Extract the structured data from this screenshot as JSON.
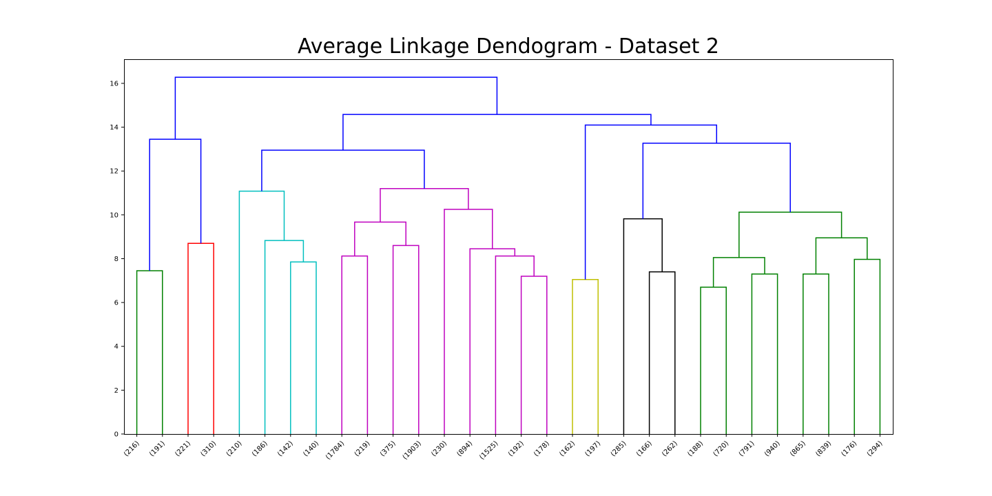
{
  "chart_data": {
    "type": "dendrogram",
    "title": "Average Linkage Dendogram - Dataset 2",
    "xlabel": "",
    "ylabel": "",
    "ylim": [
      0,
      17.1
    ],
    "yticks": [
      0,
      2,
      4,
      6,
      8,
      10,
      12,
      14,
      16
    ],
    "grid": false,
    "leaves": [
      "(216)",
      "(191)",
      "(221)",
      "(310)",
      "(210)",
      "(186)",
      "(142)",
      "(140)",
      "(1784)",
      "(219)",
      "(375)",
      "(1903)",
      "(230)",
      "(894)",
      "(1525)",
      "(192)",
      "(178)",
      "(162)",
      "(197)",
      "(285)",
      "(166)",
      "(262)",
      "(188)",
      "(720)",
      "(791)",
      "(940)",
      "(865)",
      "(839)",
      "(176)",
      "(294)"
    ],
    "colors": {
      "green": "#008000",
      "red": "#ff0000",
      "cyan": "#00bfbf",
      "magenta": "#bf00bf",
      "yellow": "#bfbf00",
      "black": "#000000",
      "blue": "#0000ff"
    },
    "merges": [
      {
        "left": "L0",
        "right": "L1",
        "height": 7.45,
        "color": "green"
      },
      {
        "left": "L2",
        "right": "L3",
        "height": 8.7,
        "color": "red"
      },
      {
        "left": "L6",
        "right": "L7",
        "height": 7.85,
        "color": "cyan"
      },
      {
        "left": "L5",
        "right": "M2",
        "height": 8.83,
        "color": "cyan"
      },
      {
        "left": "L4",
        "right": "M3",
        "height": 11.08,
        "color": "cyan"
      },
      {
        "left": "L8",
        "right": "L9",
        "height": 8.12,
        "color": "magenta"
      },
      {
        "left": "L10",
        "right": "L11",
        "height": 8.6,
        "color": "magenta"
      },
      {
        "left": "M5",
        "right": "M6",
        "height": 9.67,
        "color": "magenta"
      },
      {
        "left": "L15",
        "right": "L16",
        "height": 7.2,
        "color": "magenta"
      },
      {
        "left": "L14",
        "right": "M8",
        "height": 8.12,
        "color": "magenta"
      },
      {
        "left": "L13",
        "right": "M9",
        "height": 8.45,
        "color": "magenta"
      },
      {
        "left": "L12",
        "right": "M10",
        "height": 10.25,
        "color": "magenta"
      },
      {
        "left": "M7",
        "right": "M11",
        "height": 11.2,
        "color": "magenta"
      },
      {
        "left": "L17",
        "right": "L18",
        "height": 7.05,
        "color": "yellow"
      },
      {
        "left": "L20",
        "right": "L21",
        "height": 7.4,
        "color": "black"
      },
      {
        "left": "L19",
        "right": "M14",
        "height": 9.82,
        "color": "black"
      },
      {
        "left": "L22",
        "right": "L23",
        "height": 6.7,
        "color": "green"
      },
      {
        "left": "L24",
        "right": "L25",
        "height": 7.3,
        "color": "green"
      },
      {
        "left": "M16",
        "right": "M17",
        "height": 8.05,
        "color": "green"
      },
      {
        "left": "L26",
        "right": "L27",
        "height": 7.3,
        "color": "green"
      },
      {
        "left": "L28",
        "right": "L29",
        "height": 7.97,
        "color": "green"
      },
      {
        "left": "M19",
        "right": "M20",
        "height": 8.95,
        "color": "green"
      },
      {
        "left": "M18",
        "right": "M21",
        "height": 10.12,
        "color": "green"
      },
      {
        "left": "M0",
        "right": "M1",
        "height": 13.45,
        "color": "blue"
      },
      {
        "left": "M4",
        "right": "M12",
        "height": 12.95,
        "color": "blue"
      },
      {
        "left": "M15",
        "right": "M22",
        "height": 13.27,
        "color": "blue"
      },
      {
        "left": "M13",
        "right": "M25",
        "height": 14.1,
        "color": "blue"
      },
      {
        "left": "M24",
        "right": "M26",
        "height": 14.58,
        "color": "blue"
      },
      {
        "left": "M23",
        "right": "M27",
        "height": 16.28,
        "color": "blue"
      }
    ]
  }
}
